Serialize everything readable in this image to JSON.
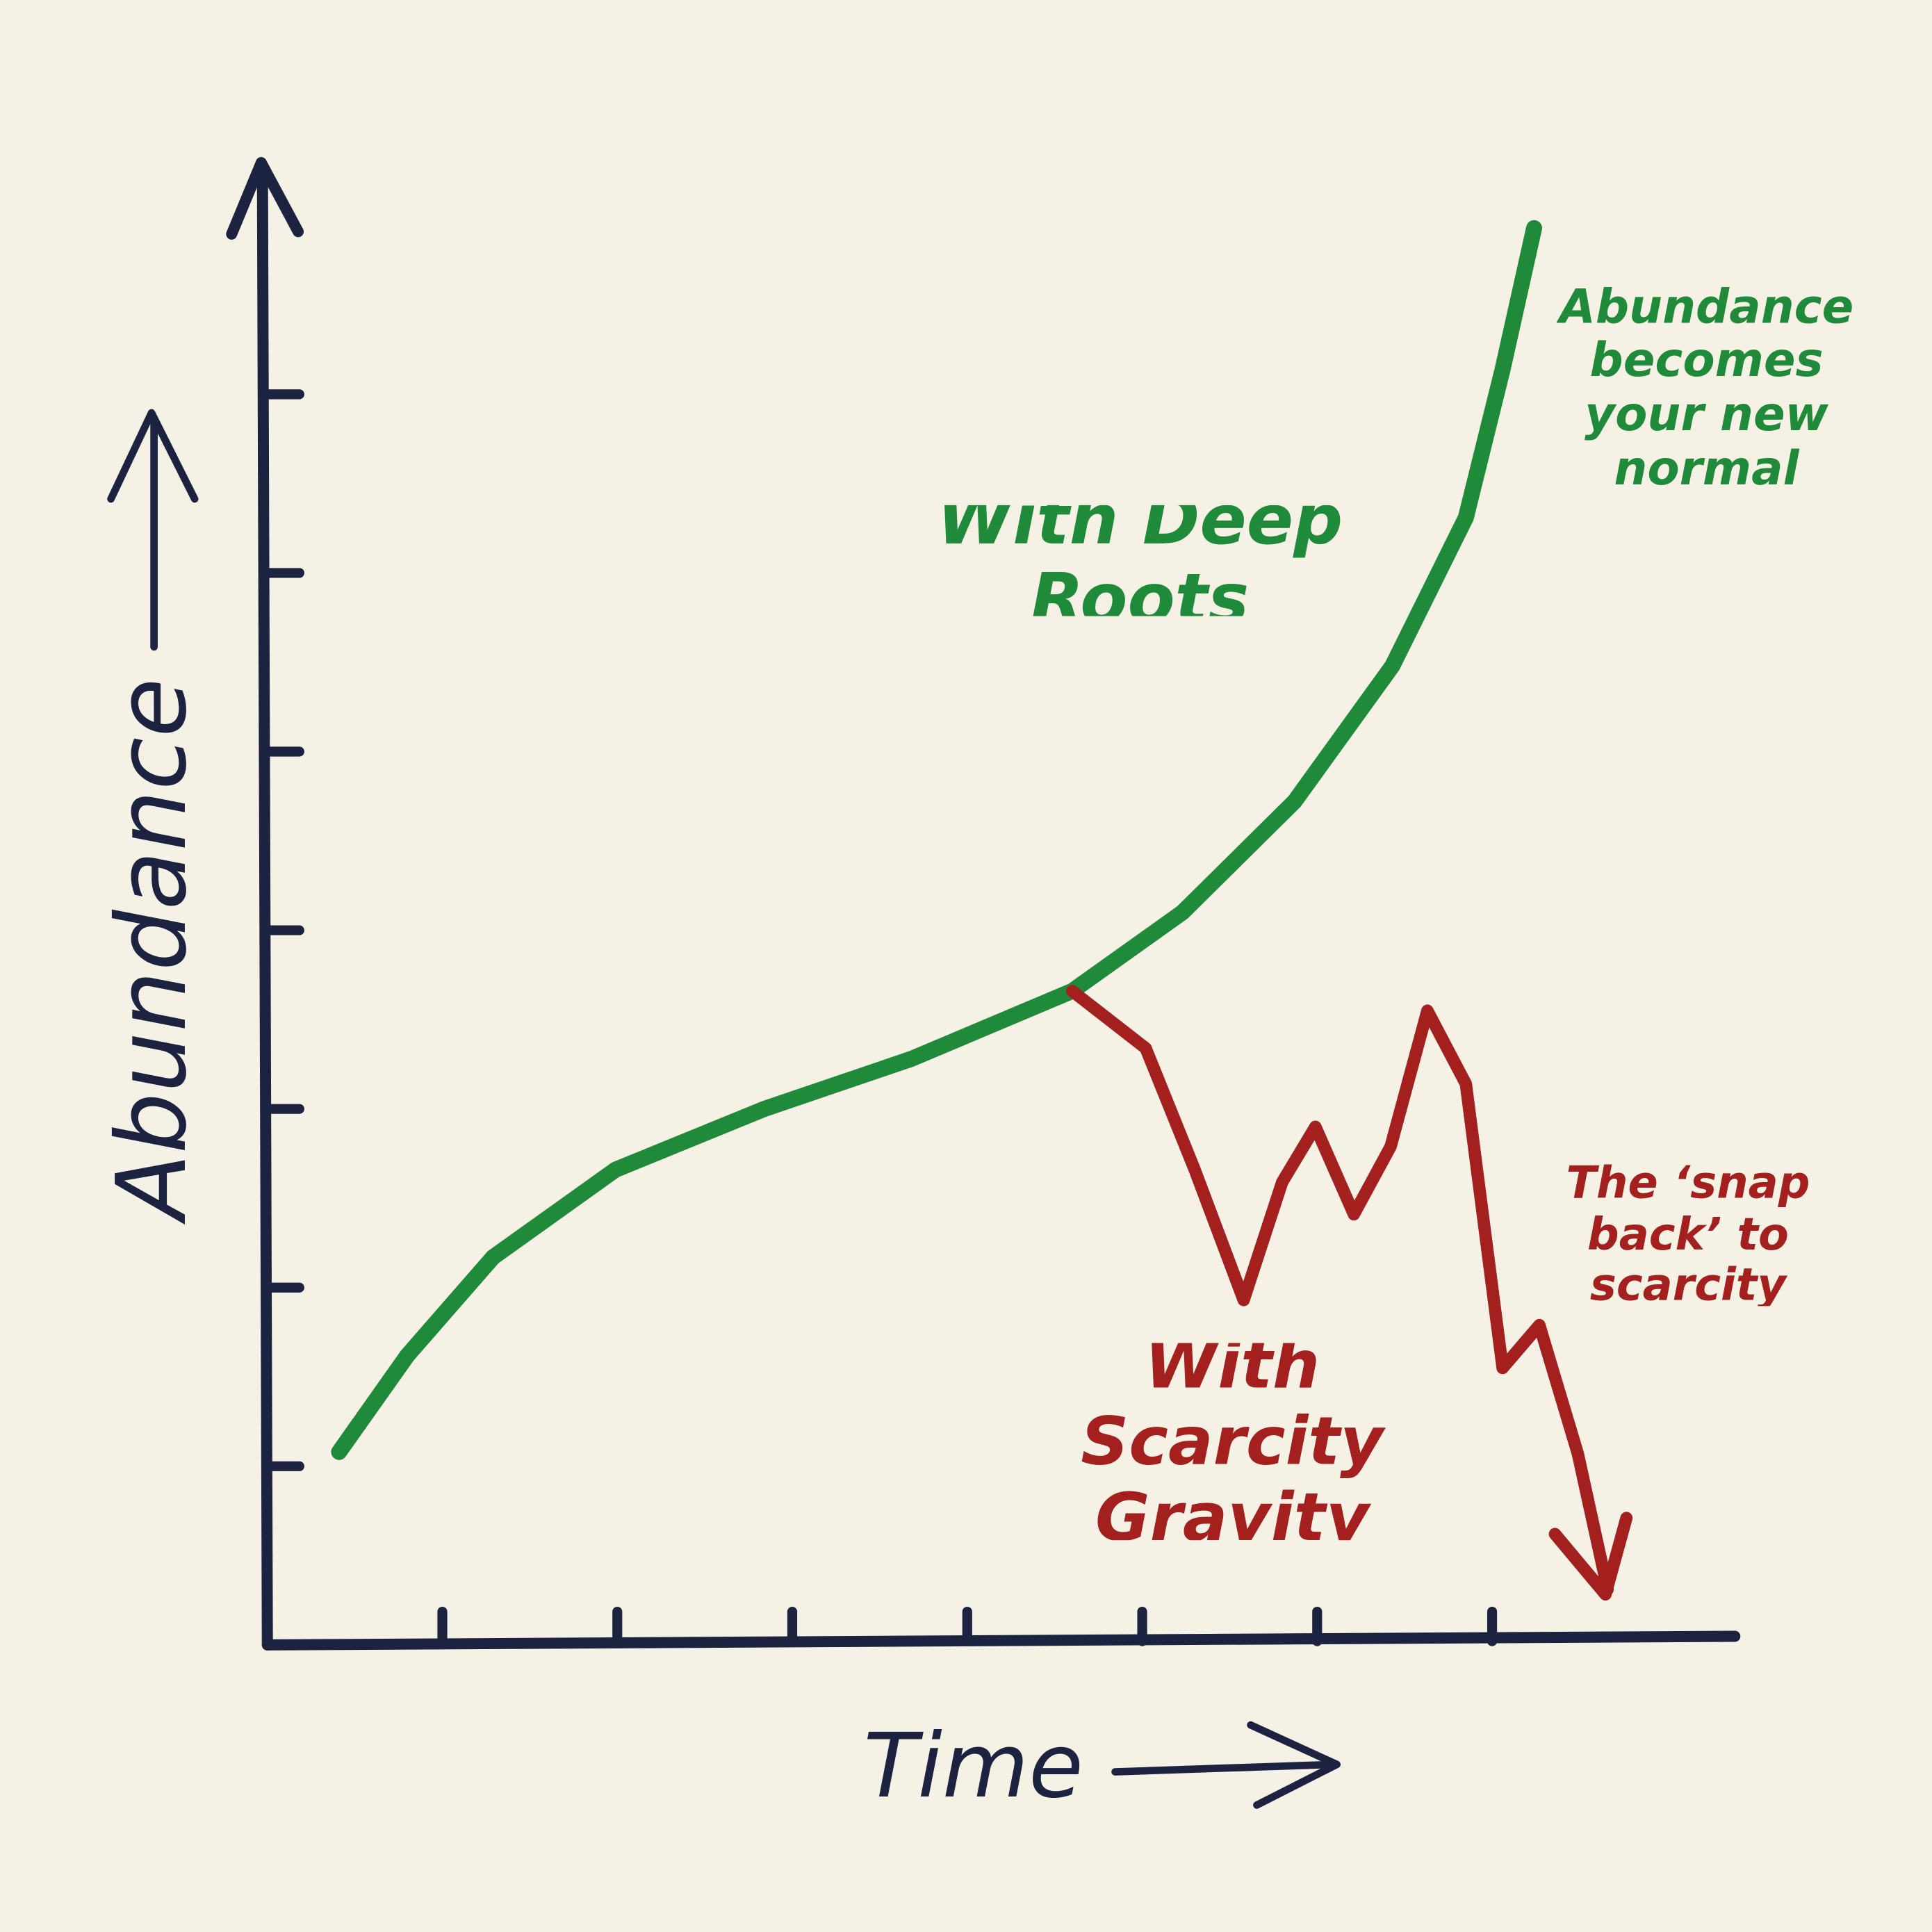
{
  "chart_data": {
    "type": "line",
    "x_label": "Time",
    "y_label": "Abundance",
    "xlim": [
      0,
      8.4
    ],
    "ylim": [
      0,
      8.3
    ],
    "xticks": [
      1,
      2,
      3,
      4,
      5,
      6,
      7
    ],
    "yticks": [
      1,
      2,
      3,
      4,
      5,
      6,
      7
    ],
    "series": [
      {
        "name": "With Deep Roots",
        "color": "#1e8a3a",
        "x": [
          0.41,
          0.8,
          1.29,
          1.99,
          2.84,
          3.68,
          4.6,
          5.23,
          5.87,
          6.43,
          6.85,
          7.06,
          7.24
        ],
        "values": [
          1.08,
          1.62,
          2.17,
          2.66,
          3.0,
          3.28,
          3.66,
          4.1,
          4.72,
          5.48,
          6.31,
          7.14,
          7.93
        ]
      },
      {
        "name": "With Scarcity Gravity",
        "color": "#a3201f",
        "x": [
          4.6,
          5.02,
          5.3,
          5.58,
          5.8,
          5.99,
          6.21,
          6.42,
          6.63,
          6.85,
          7.06,
          7.27,
          7.49,
          7.66
        ],
        "values": [
          3.66,
          3.34,
          2.66,
          1.93,
          2.59,
          2.9,
          2.41,
          2.79,
          3.55,
          3.14,
          1.55,
          1.79,
          1.07,
          0.31
        ]
      }
    ],
    "annotations": [
      {
        "text": "Abundance becomes your new normal",
        "color": "#1e8a3a"
      },
      {
        "text": "The ‘snap back’ to scarcity",
        "color": "#a3201f"
      }
    ]
  }
}
